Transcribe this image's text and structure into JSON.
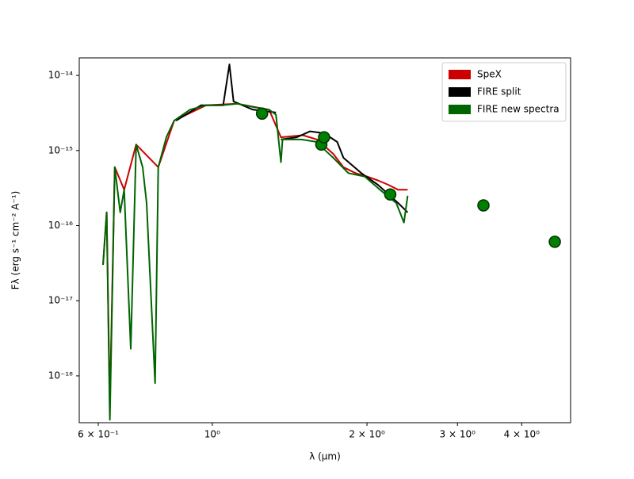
{
  "chart_data": {
    "type": "line",
    "xlabel": "λ (μm)",
    "ylabel": "Fλ (erg s⁻¹ cm⁻² A⁻¹)",
    "xscale": "log",
    "yscale": "log",
    "xlim": [
      0.551,
      4.98
    ],
    "ylim": [
      2.38e-19,
      1.71e-14
    ],
    "xticks": [
      {
        "value": 0.6,
        "label": "6 × 10⁻¹"
      },
      {
        "value": 1,
        "label": "10⁰"
      },
      {
        "value": 2,
        "label": "2 × 10⁰"
      },
      {
        "value": 3,
        "label": "3 × 10⁰"
      },
      {
        "value": 4,
        "label": "4 × 10⁰"
      }
    ],
    "yticks": [
      {
        "value": 1e-18,
        "label": "10⁻¹⁸"
      },
      {
        "value": 1e-17,
        "label": "10⁻¹⁷"
      },
      {
        "value": 1e-16,
        "label": "10⁻¹⁶"
      },
      {
        "value": 1e-15,
        "label": "10⁻¹⁵"
      },
      {
        "value": 1e-14,
        "label": "10⁻¹⁴"
      }
    ],
    "legend_loc": "upper right",
    "series": [
      {
        "name": "SpeX",
        "color": "#cc0000",
        "x": [
          0.613,
          0.623,
          0.632,
          0.646,
          0.674,
          0.711,
          0.785,
          0.843,
          0.972,
          1.12,
          1.29,
          1.36,
          1.5,
          1.6,
          1.72,
          1.8,
          1.9,
          2.0,
          2.1,
          2.2,
          2.3,
          2.4
        ],
        "values": [
          3e-17,
          1.5e-16,
          4e-19,
          6e-16,
          3e-16,
          1.2e-15,
          6e-16,
          2.5e-15,
          4e-15,
          4.2e-15,
          3.5e-15,
          1.5e-15,
          1.6e-15,
          1.4e-15,
          9e-16,
          6e-16,
          5e-16,
          4.5e-16,
          4e-16,
          3.5e-16,
          3e-16,
          3e-16
        ]
      },
      {
        "name": "FIRE split",
        "color": "#000000",
        "x": [
          0.85,
          0.95,
          1.05,
          1.08,
          1.1,
          1.2,
          1.33,
          1.35,
          1.36,
          1.46,
          1.55,
          1.65,
          1.75,
          1.8,
          1.95,
          2.1,
          2.3,
          2.4
        ],
        "values": [
          2.5e-15,
          4e-15,
          4e-15,
          1.4e-14,
          4.5e-15,
          3.5e-15,
          3.2e-15,
          null,
          1.4e-15,
          1.5e-15,
          1.8e-15,
          1.7e-15,
          1.3e-15,
          8e-16,
          5e-16,
          3.5e-16,
          2e-16,
          1.5e-16
        ]
      },
      {
        "name": "FIRE new spectra",
        "color": "#006400",
        "x": [
          0.613,
          0.623,
          0.632,
          0.646,
          0.662,
          0.674,
          0.694,
          0.711,
          0.732,
          0.745,
          0.774,
          0.785,
          0.814,
          0.843,
          0.905,
          0.972,
          1.043,
          1.12,
          1.2,
          1.29,
          1.33,
          1.36,
          1.37,
          1.49,
          1.6,
          1.66,
          1.72,
          1.84,
          1.98,
          2.12,
          2.28,
          2.36,
          2.4
        ],
        "values": [
          3e-17,
          1.5e-16,
          2.6e-19,
          6e-16,
          1.5e-16,
          3e-16,
          2.3e-18,
          1.2e-15,
          6e-16,
          2e-16,
          8e-19,
          6e-16,
          1.5e-15,
          2.5e-15,
          3.5e-15,
          4e-15,
          4e-15,
          4.2e-15,
          3.8e-15,
          3.5e-15,
          3e-15,
          7e-16,
          1.4e-15,
          1.4e-15,
          1.3e-15,
          1e-15,
          8e-16,
          5e-16,
          4.5e-16,
          3e-16,
          2e-16,
          1.1e-16,
          2.5e-16
        ]
      }
    ],
    "markers": {
      "color": "#008000",
      "x": [
        1.25,
        1.63,
        1.65,
        2.22,
        3.37,
        4.64
      ],
      "values": [
        3.1e-15,
        1.2e-15,
        1.5e-15,
        2.6e-16,
        1.86e-16,
        6.1e-17
      ]
    }
  }
}
